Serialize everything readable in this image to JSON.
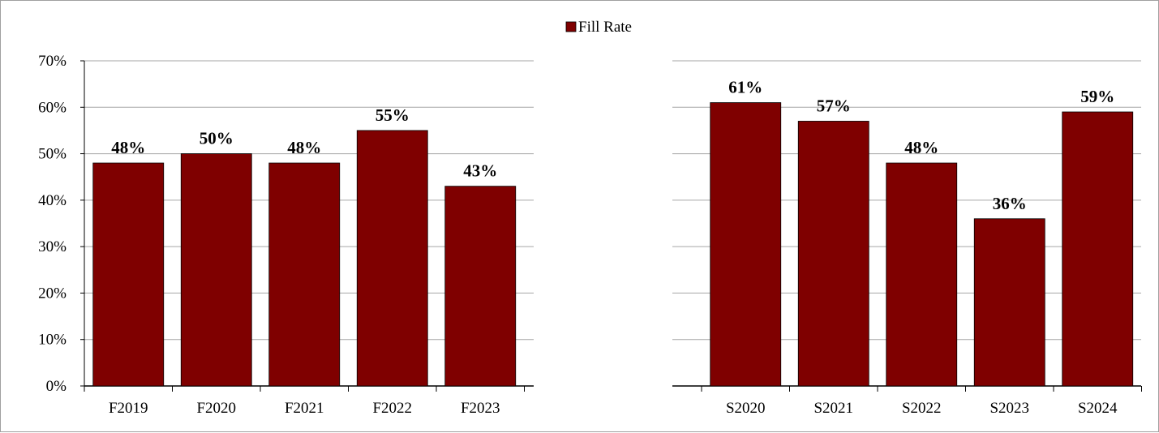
{
  "legend": {
    "label": "Fill Rate",
    "color": "#7f0000"
  },
  "style": {
    "bar_color": "#7f0000",
    "bar_edge": "#000000",
    "grid_color": "#a6a6a6"
  },
  "chart_data": [
    {
      "type": "bar",
      "categories": [
        "F2019",
        "F2020",
        "F2021",
        "F2022",
        "F2023"
      ],
      "series": [
        {
          "name": "Fill Rate",
          "values": [
            0.48,
            0.5,
            0.48,
            0.55,
            0.43
          ]
        }
      ],
      "data_labels": [
        "48%",
        "50%",
        "48%",
        "55%",
        "43%"
      ],
      "ylim": [
        0,
        0.7
      ],
      "yticks": [
        0,
        0.1,
        0.2,
        0.3,
        0.4,
        0.5,
        0.6,
        0.7
      ],
      "ytick_labels": [
        "0%",
        "10%",
        "20%",
        "30%",
        "40%",
        "50%",
        "60%",
        "70%"
      ],
      "grid": true,
      "legend_position": "top-center"
    },
    {
      "type": "bar",
      "categories": [
        "S2020",
        "S2021",
        "S2022",
        "S2023",
        "S2024"
      ],
      "series": [
        {
          "name": "Fill Rate",
          "values": [
            0.61,
            0.57,
            0.48,
            0.36,
            0.59
          ]
        }
      ],
      "data_labels": [
        "61%",
        "57%",
        "48%",
        "36%",
        "59%"
      ],
      "ylim": [
        0,
        0.7
      ],
      "yticks": [
        0,
        0.1,
        0.2,
        0.3,
        0.4,
        0.5,
        0.6,
        0.7
      ],
      "ytick_labels": [],
      "grid": true,
      "legend_position": "top-center"
    }
  ]
}
